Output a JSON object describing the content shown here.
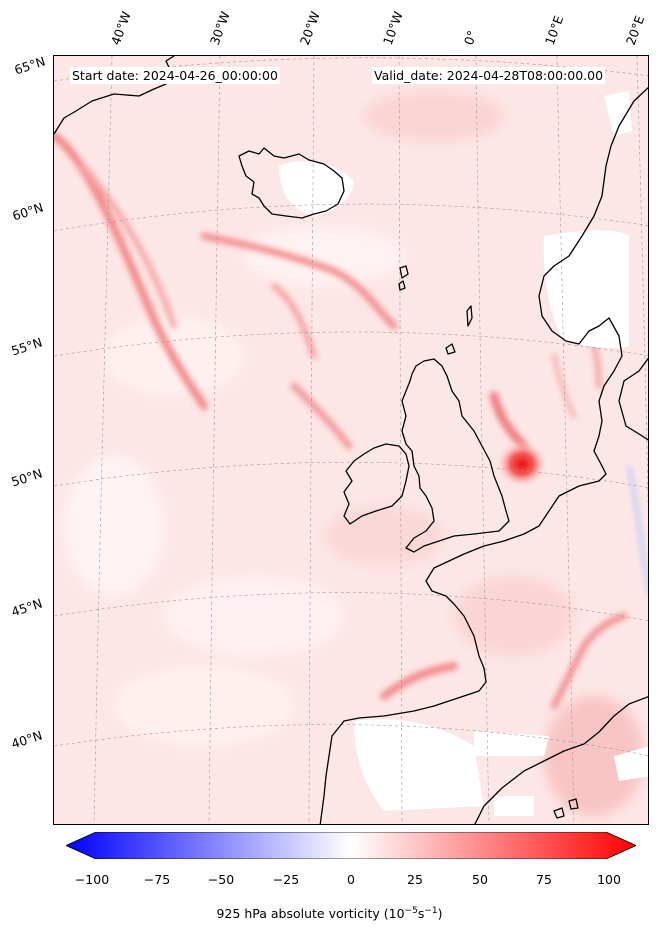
{
  "header": {
    "start_label": "Start date: 2024-04-26_00:00:00",
    "valid_label": "Valid_date: 2024-04-28T08:00:00.00"
  },
  "lon_labels": [
    "40°W",
    "30°W",
    "20°W",
    "10°W",
    "0°",
    "10°E",
    "20°E"
  ],
  "lat_labels": [
    "65°N",
    "60°N",
    "55°N",
    "50°N",
    "45°N",
    "40°N"
  ],
  "colorbar": {
    "ticks": [
      "−100",
      "−75",
      "−50",
      "−25",
      "0",
      "25",
      "50",
      "75",
      "100"
    ],
    "label_main": "925 hPa absolute vorticity (10",
    "label_exp1": "−5",
    "label_mid": "s",
    "label_exp2": "−1",
    "label_end": ")",
    "min_color": "#0000ff",
    "mid_color": "#ffffff",
    "max_color": "#ff0000"
  },
  "colors": {
    "field_background": "#fde6e6",
    "land_blank": "#ffffff",
    "coastline": "#000000",
    "vorticity_max": "#f21a1a"
  }
}
